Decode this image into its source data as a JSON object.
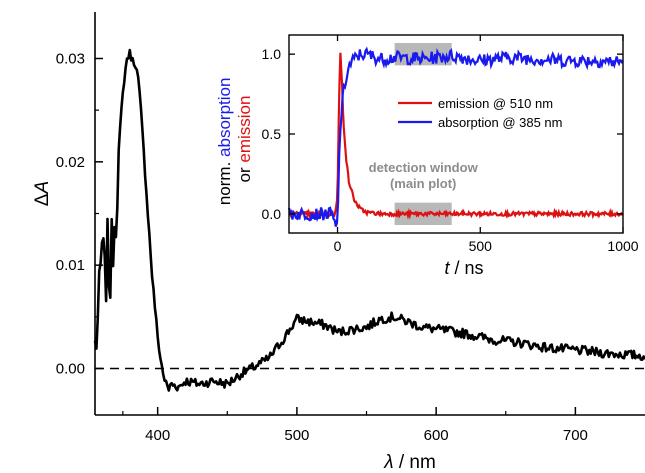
{
  "chart_data": [
    {
      "id": "main",
      "type": "line",
      "xlabel_var": "λ",
      "xlabel_unit": " / nm",
      "ylabel_delta": "Δ",
      "ylabel_var": "A",
      "xlim": [
        355,
        750
      ],
      "ylim": [
        -0.0045,
        0.0345
      ],
      "xticks": [
        400,
        500,
        600,
        700
      ],
      "xtick_labels": [
        "400",
        "500",
        "600",
        "700"
      ],
      "yticks": [
        0.0,
        0.01,
        0.02,
        0.03
      ],
      "ytick_labels": [
        "0.00",
        "0.01",
        "0.02",
        "0.03"
      ],
      "zero_line": 0,
      "series": [
        {
          "color": "#000000",
          "x": [
            355,
            358,
            360,
            362,
            364,
            366,
            368,
            370,
            372,
            374,
            376,
            378,
            380,
            382,
            384,
            386,
            388,
            390,
            392,
            394,
            396,
            398,
            400,
            402,
            404,
            406,
            408,
            410,
            415,
            420,
            430,
            440,
            450,
            460,
            470,
            480,
            490,
            500,
            510,
            520,
            530,
            540,
            550,
            560,
            570,
            580,
            590,
            600,
            620,
            640,
            660,
            680,
            700,
            720,
            740,
            750
          ],
          "y": [
            0.002,
            0.006,
            0.012,
            0.008,
            0.011,
            0.009,
            0.013,
            0.016,
            0.021,
            0.025,
            0.028,
            0.03,
            0.0305,
            0.0298,
            0.0295,
            0.028,
            0.025,
            0.021,
            0.017,
            0.013,
            0.009,
            0.006,
            0.003,
            0.001,
            -0.0005,
            -0.0015,
            -0.002,
            -0.0015,
            -0.0018,
            -0.0012,
            -0.0015,
            -0.0012,
            -0.0015,
            -0.0005,
            0.0002,
            0.001,
            0.0028,
            0.0048,
            0.0045,
            0.0042,
            0.0035,
            0.0038,
            0.004,
            0.0048,
            0.005,
            0.0045,
            0.004,
            0.0038,
            0.0034,
            0.0028,
            0.0025,
            0.002,
            0.0018,
            0.0015,
            0.0013,
            0.0012
          ]
        }
      ]
    },
    {
      "id": "inset",
      "type": "line",
      "xlabel_var": "t",
      "xlabel_unit": " / ns",
      "ylabel_parts": [
        "norm.",
        "absorption",
        "or",
        "emission"
      ],
      "xlim": [
        -170,
        1000
      ],
      "ylim": [
        -0.12,
        1.12
      ],
      "xticks": [
        0,
        500,
        1000
      ],
      "xtick_labels": [
        "0",
        "500",
        "1000"
      ],
      "yticks": [
        0.0,
        0.5,
        1.0
      ],
      "ytick_labels": [
        "0.0",
        "0.5",
        "1.0"
      ],
      "legend": [
        {
          "label": "emission @ 510 nm",
          "color": "#dd1111"
        },
        {
          "label": "absorption @ 385 nm",
          "color": "#1a1aee"
        }
      ],
      "annotation": [
        "detection window",
        "(main plot)"
      ],
      "detection_window": [
        200,
        400
      ],
      "series": [
        {
          "name": "emission @ 510 nm",
          "color": "#dd1111",
          "x": [
            -170,
            -100,
            -50,
            -10,
            0,
            5,
            10,
            15,
            20,
            30,
            40,
            60,
            80,
            100,
            150,
            200,
            300,
            400,
            500,
            600,
            800,
            1000
          ],
          "y": [
            0.0,
            0.0,
            0.0,
            0.0,
            0.1,
            0.7,
            1.0,
            0.85,
            0.6,
            0.35,
            0.2,
            0.08,
            0.03,
            0.01,
            0.0,
            0.0,
            0.0,
            0.0,
            0.0,
            0.0,
            0.0,
            0.0
          ]
        },
        {
          "name": "absorption @ 385 nm",
          "color": "#1a1aee",
          "x": [
            -170,
            -100,
            -50,
            -20,
            -5,
            0,
            5,
            10,
            20,
            30,
            40,
            50,
            60,
            80,
            100,
            150,
            200,
            300,
            400,
            500,
            600,
            700,
            800,
            900,
            1000
          ],
          "y": [
            0.0,
            0.0,
            0.0,
            0.0,
            -0.1,
            -0.05,
            0.3,
            0.55,
            0.75,
            0.85,
            0.92,
            0.95,
            0.97,
            1.0,
            1.0,
            0.97,
            0.98,
            0.97,
            0.99,
            0.96,
            0.98,
            0.97,
            0.96,
            0.96,
            0.95
          ]
        }
      ]
    }
  ]
}
